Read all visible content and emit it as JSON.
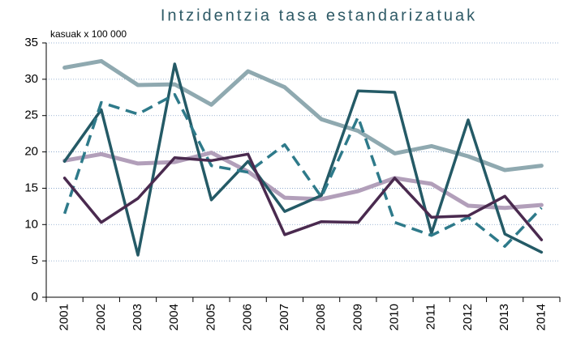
{
  "chart_data": {
    "type": "line",
    "title": "Intzidentzia tasa estandarizatuak",
    "y_label": "kasuak x 100 000",
    "categories": [
      "2001",
      "2002",
      "2003",
      "2004",
      "2005",
      "2006",
      "2007",
      "2008",
      "2009",
      "2010",
      "2011",
      "2012",
      "2013",
      "2014"
    ],
    "ylim": [
      0,
      35
    ],
    "yticks": [
      0,
      5,
      10,
      15,
      20,
      25,
      30,
      35
    ],
    "grid": true,
    "series": [
      {
        "color": "#8fa9b0",
        "linewidth": 5,
        "dashed": false,
        "values": [
          31.6,
          32.5,
          29.2,
          29.3,
          26.5,
          31.1,
          28.9,
          24.5,
          22.9,
          19.8,
          20.8,
          19.4,
          17.5,
          18.1
        ]
      },
      {
        "color": "#b29fba",
        "linewidth": 5,
        "dashed": false,
        "values": [
          18.8,
          19.7,
          18.4,
          18.6,
          19.9,
          17.3,
          13.7,
          13.5,
          14.6,
          16.4,
          15.6,
          12.6,
          12.3,
          12.7
        ]
      },
      {
        "color": "#245a66",
        "linewidth": 3.5,
        "dashed": false,
        "values": [
          18.7,
          25.8,
          5.8,
          32.1,
          13.4,
          18.7,
          11.8,
          14.0,
          28.4,
          28.2,
          8.8,
          24.4,
          8.7,
          6.2
        ]
      },
      {
        "color": "#2e7a8a",
        "linewidth": 3.5,
        "dashed": true,
        "values": [
          11.5,
          26.8,
          25.2,
          27.9,
          18.1,
          17.2,
          21.0,
          13.8,
          24.8,
          10.3,
          8.5,
          11.0,
          7.0,
          12.3
        ]
      },
      {
        "color": "#4a2a4f",
        "linewidth": 3.5,
        "dashed": false,
        "values": [
          16.4,
          10.3,
          13.6,
          19.2,
          18.8,
          19.7,
          8.6,
          10.4,
          10.3,
          16.4,
          11.0,
          11.2,
          13.9,
          7.9
        ]
      }
    ]
  }
}
